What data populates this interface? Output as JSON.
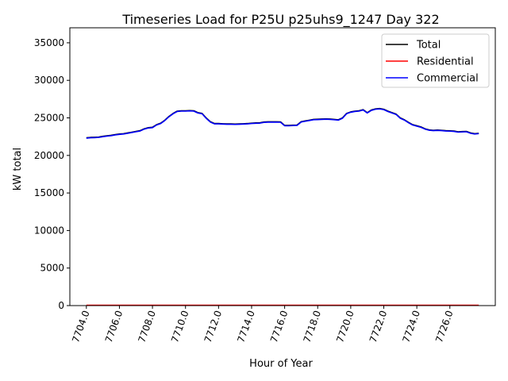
{
  "chart_data": {
    "type": "line",
    "title": "Timeseries Load for P25U p25uhs9_1247  Day 322",
    "xlabel": "Hour of Year",
    "ylabel": "kW total",
    "xlim": [
      7703.0,
      7728.75
    ],
    "ylim": [
      0,
      37000
    ],
    "x_ticks": [
      7704,
      7706,
      7708,
      7710,
      7712,
      7714,
      7716,
      7718,
      7720,
      7722,
      7724,
      7726
    ],
    "x_tick_labels": [
      "7704.0",
      "7706.0",
      "7708.0",
      "7710.0",
      "7712.0",
      "7714.0",
      "7716.0",
      "7718.0",
      "7720.0",
      "7722.0",
      "7724.0",
      "7726.0"
    ],
    "y_ticks": [
      0,
      5000,
      10000,
      15000,
      20000,
      25000,
      30000,
      35000
    ],
    "y_tick_labels": [
      "0",
      "5000",
      "10000",
      "15000",
      "20000",
      "25000",
      "30000",
      "35000"
    ],
    "legend_position": "top-right",
    "x": [
      7704.0,
      7704.25,
      7704.5,
      7704.75,
      7705.0,
      7705.25,
      7705.5,
      7705.75,
      7706.0,
      7706.25,
      7706.5,
      7706.75,
      7707.0,
      7707.25,
      7707.5,
      7707.75,
      7708.0,
      7708.25,
      7708.5,
      7708.75,
      7709.0,
      7709.25,
      7709.5,
      7709.75,
      7710.0,
      7710.25,
      7710.5,
      7710.75,
      7711.0,
      7711.25,
      7711.5,
      7711.75,
      7712.0,
      7712.25,
      7712.5,
      7712.75,
      7713.0,
      7713.25,
      7713.5,
      7713.75,
      7714.0,
      7714.25,
      7714.5,
      7714.75,
      7715.0,
      7715.25,
      7715.5,
      7715.75,
      7716.0,
      7716.25,
      7716.5,
      7716.75,
      7717.0,
      7717.25,
      7717.5,
      7717.75,
      7718.0,
      7718.25,
      7718.5,
      7718.75,
      7719.0,
      7719.25,
      7719.5,
      7719.75,
      7720.0,
      7720.25,
      7720.5,
      7720.75,
      7721.0,
      7721.25,
      7721.5,
      7721.75,
      7722.0,
      7722.25,
      7722.5,
      7722.75,
      7723.0,
      7723.25,
      7723.5,
      7723.75,
      7724.0,
      7724.25,
      7724.5,
      7724.75,
      7725.0,
      7725.25,
      7725.5,
      7725.75,
      7726.0,
      7726.25,
      7726.5,
      7726.75,
      7727.0,
      7727.25,
      7727.5,
      7727.75
    ],
    "series": [
      {
        "name": "Total",
        "color": "#000000",
        "values": [
          22350,
          22400,
          22420,
          22450,
          22550,
          22620,
          22680,
          22780,
          22850,
          22900,
          23000,
          23100,
          23200,
          23300,
          23550,
          23700,
          23750,
          24100,
          24300,
          24700,
          25200,
          25600,
          25900,
          25950,
          25950,
          25980,
          25950,
          25700,
          25600,
          25000,
          24500,
          24250,
          24250,
          24220,
          24200,
          24200,
          24180,
          24200,
          24220,
          24250,
          24300,
          24330,
          24350,
          24450,
          24480,
          24480,
          24480,
          24470,
          24000,
          24000,
          24030,
          24050,
          24500,
          24600,
          24700,
          24800,
          24820,
          24850,
          24870,
          24850,
          24800,
          24750,
          25000,
          25600,
          25800,
          25900,
          25950,
          26100,
          25700,
          26050,
          26200,
          26250,
          26150,
          25900,
          25700,
          25500,
          25000,
          24750,
          24400,
          24100,
          23950,
          23800,
          23550,
          23400,
          23350,
          23380,
          23350,
          23300,
          23280,
          23250,
          23150,
          23180,
          23200,
          23000,
          22900,
          22950
        ]
      },
      {
        "name": "Residential",
        "color": "#ff0000",
        "values": [
          50,
          50,
          50,
          50,
          50,
          50,
          50,
          50,
          50,
          50,
          50,
          50,
          50,
          50,
          50,
          50,
          50,
          50,
          50,
          50,
          50,
          50,
          50,
          50,
          50,
          50,
          50,
          50,
          50,
          50,
          50,
          50,
          50,
          50,
          50,
          50,
          50,
          50,
          50,
          50,
          50,
          50,
          50,
          50,
          50,
          50,
          50,
          50,
          50,
          50,
          50,
          50,
          50,
          50,
          50,
          50,
          50,
          50,
          50,
          50,
          50,
          50,
          50,
          50,
          50,
          50,
          50,
          50,
          50,
          50,
          50,
          50,
          50,
          50,
          50,
          50,
          50,
          50,
          50,
          50,
          50,
          50,
          50,
          50,
          50,
          50,
          50,
          50,
          50,
          50,
          50,
          50,
          50,
          50,
          50,
          50
        ]
      },
      {
        "name": "Commercial",
        "color": "#0000ff",
        "values": [
          22300,
          22350,
          22370,
          22400,
          22500,
          22570,
          22630,
          22730,
          22800,
          22850,
          22950,
          23050,
          23150,
          23250,
          23500,
          23650,
          23700,
          24050,
          24250,
          24650,
          25150,
          25550,
          25850,
          25900,
          25900,
          25930,
          25900,
          25650,
          25550,
          24950,
          24450,
          24200,
          24200,
          24170,
          24150,
          24150,
          24130,
          24150,
          24170,
          24200,
          24250,
          24280,
          24300,
          24400,
          24430,
          24430,
          24430,
          24420,
          23950,
          23950,
          23980,
          24000,
          24450,
          24550,
          24650,
          24750,
          24770,
          24800,
          24820,
          24800,
          24750,
          24700,
          24950,
          25550,
          25750,
          25850,
          25900,
          26050,
          25650,
          26000,
          26150,
          26200,
          26100,
          25850,
          25650,
          25450,
          24950,
          24700,
          24350,
          24050,
          23900,
          23750,
          23500,
          23350,
          23300,
          23330,
          23300,
          23250,
          23230,
          23200,
          23100,
          23130,
          23150,
          22950,
          22850,
          22900
        ]
      }
    ]
  }
}
